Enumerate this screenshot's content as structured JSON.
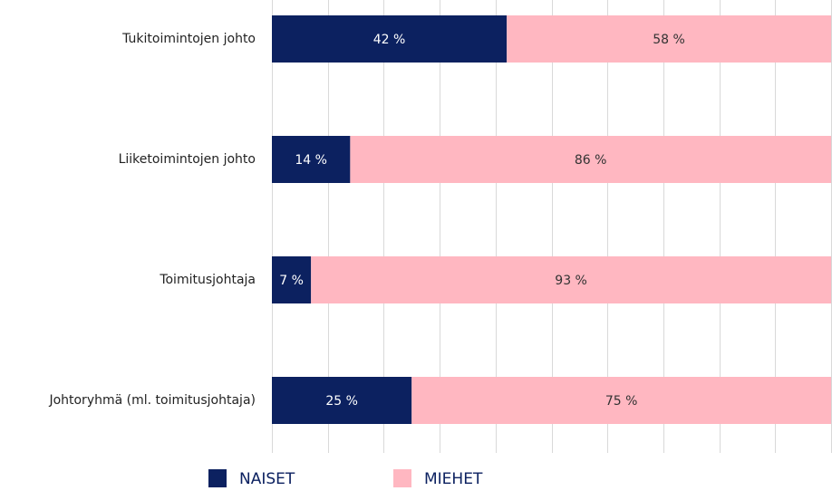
{
  "chart_data": {
    "type": "stacked_barh",
    "categories": [
      "Tukitoimintojen johto",
      "Liiketoimintojen johto",
      "Toimitusjohtaja",
      "Johtoryhmä (ml. toimitusjohtaja)"
    ],
    "series": [
      {
        "name": "NAISET",
        "color": "#0c2160",
        "values": [
          42,
          14,
          7,
          25
        ],
        "value_labels": [
          "42 %",
          "14 %",
          "7 %",
          "25 %"
        ]
      },
      {
        "name": "MIEHET",
        "color": "#ffb7c1",
        "values": [
          58,
          86,
          93,
          75
        ],
        "value_labels": [
          "58 %",
          "86 %",
          "93 %",
          "75 %"
        ]
      }
    ],
    "xlim": [
      0,
      100
    ],
    "xticks": [
      0,
      10,
      20,
      30,
      40,
      50,
      60,
      70,
      80,
      90,
      100
    ],
    "grid": true,
    "legend": "bottom"
  }
}
